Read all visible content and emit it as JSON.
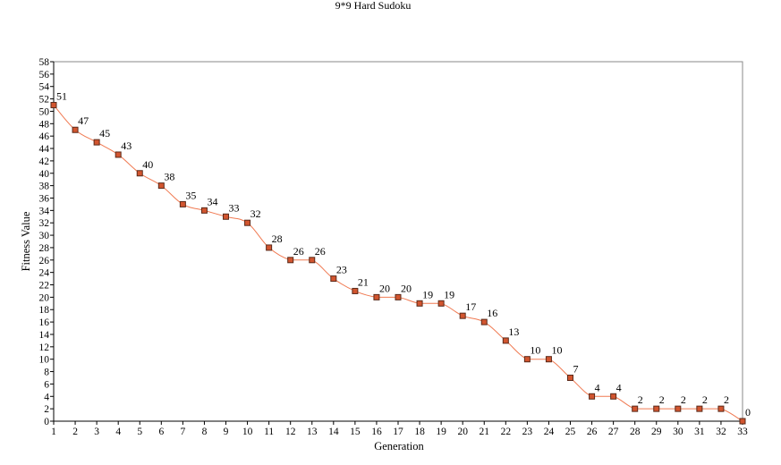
{
  "chart_data": {
    "type": "line",
    "title": "9*9 Hard Sudoku",
    "xlabel": "Generation",
    "ylabel": "Fitness Value",
    "x": [
      1,
      2,
      3,
      4,
      5,
      6,
      7,
      8,
      9,
      10,
      11,
      12,
      13,
      14,
      15,
      16,
      17,
      18,
      19,
      20,
      21,
      22,
      23,
      24,
      25,
      26,
      27,
      28,
      29,
      30,
      31,
      32,
      33
    ],
    "values": [
      51,
      47,
      45,
      43,
      40,
      38,
      35,
      34,
      33,
      32,
      28,
      26,
      26,
      23,
      21,
      20,
      20,
      19,
      19,
      17,
      16,
      13,
      10,
      10,
      7,
      4,
      4,
      2,
      2,
      2,
      2,
      2,
      0
    ],
    "xlim": [
      1,
      33
    ],
    "ylim": [
      0,
      58
    ],
    "y_tick_step": 2,
    "grid": false,
    "line_color": "#f07a52",
    "marker_fill": "#d2552f",
    "marker_edge": "#5a2a1a"
  }
}
